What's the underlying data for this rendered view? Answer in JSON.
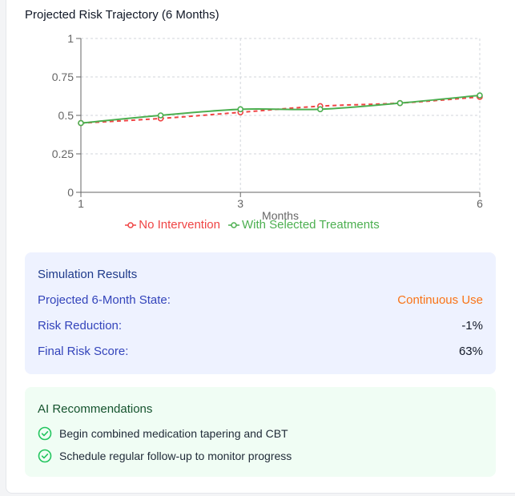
{
  "chart_title": "Projected Risk Trajectory (6 Months)",
  "chart_data": {
    "type": "line",
    "title": "Projected Risk Trajectory (6 Months)",
    "xlabel": "Months",
    "ylabel": "",
    "xlim": [
      1,
      6
    ],
    "ylim": [
      0,
      1
    ],
    "x_ticks": [
      "1",
      "3",
      "6"
    ],
    "y_ticks": [
      "0",
      "0.25",
      "0.5",
      "0.75",
      "1"
    ],
    "grid": true,
    "legend_position": "bottom",
    "x": [
      1,
      2,
      3,
      4,
      5,
      6
    ],
    "series": [
      {
        "name": "No Intervention",
        "values": [
          0.45,
          0.48,
          0.52,
          0.56,
          0.58,
          0.62
        ],
        "color": "#ef4444",
        "dashed": true
      },
      {
        "name": "With Selected Treatments",
        "values": [
          0.45,
          0.5,
          0.54,
          0.54,
          0.58,
          0.63
        ],
        "color": "#4caf50",
        "dashed": false
      }
    ]
  },
  "results": {
    "title": "Simulation Results",
    "rows": [
      {
        "label": "Projected 6-Month State:",
        "value": "Continuous Use"
      },
      {
        "label": "Risk Reduction:",
        "value": "-1%"
      },
      {
        "label": "Final Risk Score:",
        "value": "63%"
      }
    ]
  },
  "recommendations": {
    "title": "AI Recommendations",
    "items": [
      "Begin combined medication tapering and CBT",
      "Schedule regular follow-up to monitor progress"
    ]
  },
  "colors": {
    "results_bg": "#eef2ff",
    "recs_bg": "#f0fdf4",
    "accent_orange": "#f97316",
    "check_green": "#22c55e"
  },
  "icons": {
    "recommendation": "check-circle-icon",
    "legend_marker": "circle-line-icon"
  }
}
